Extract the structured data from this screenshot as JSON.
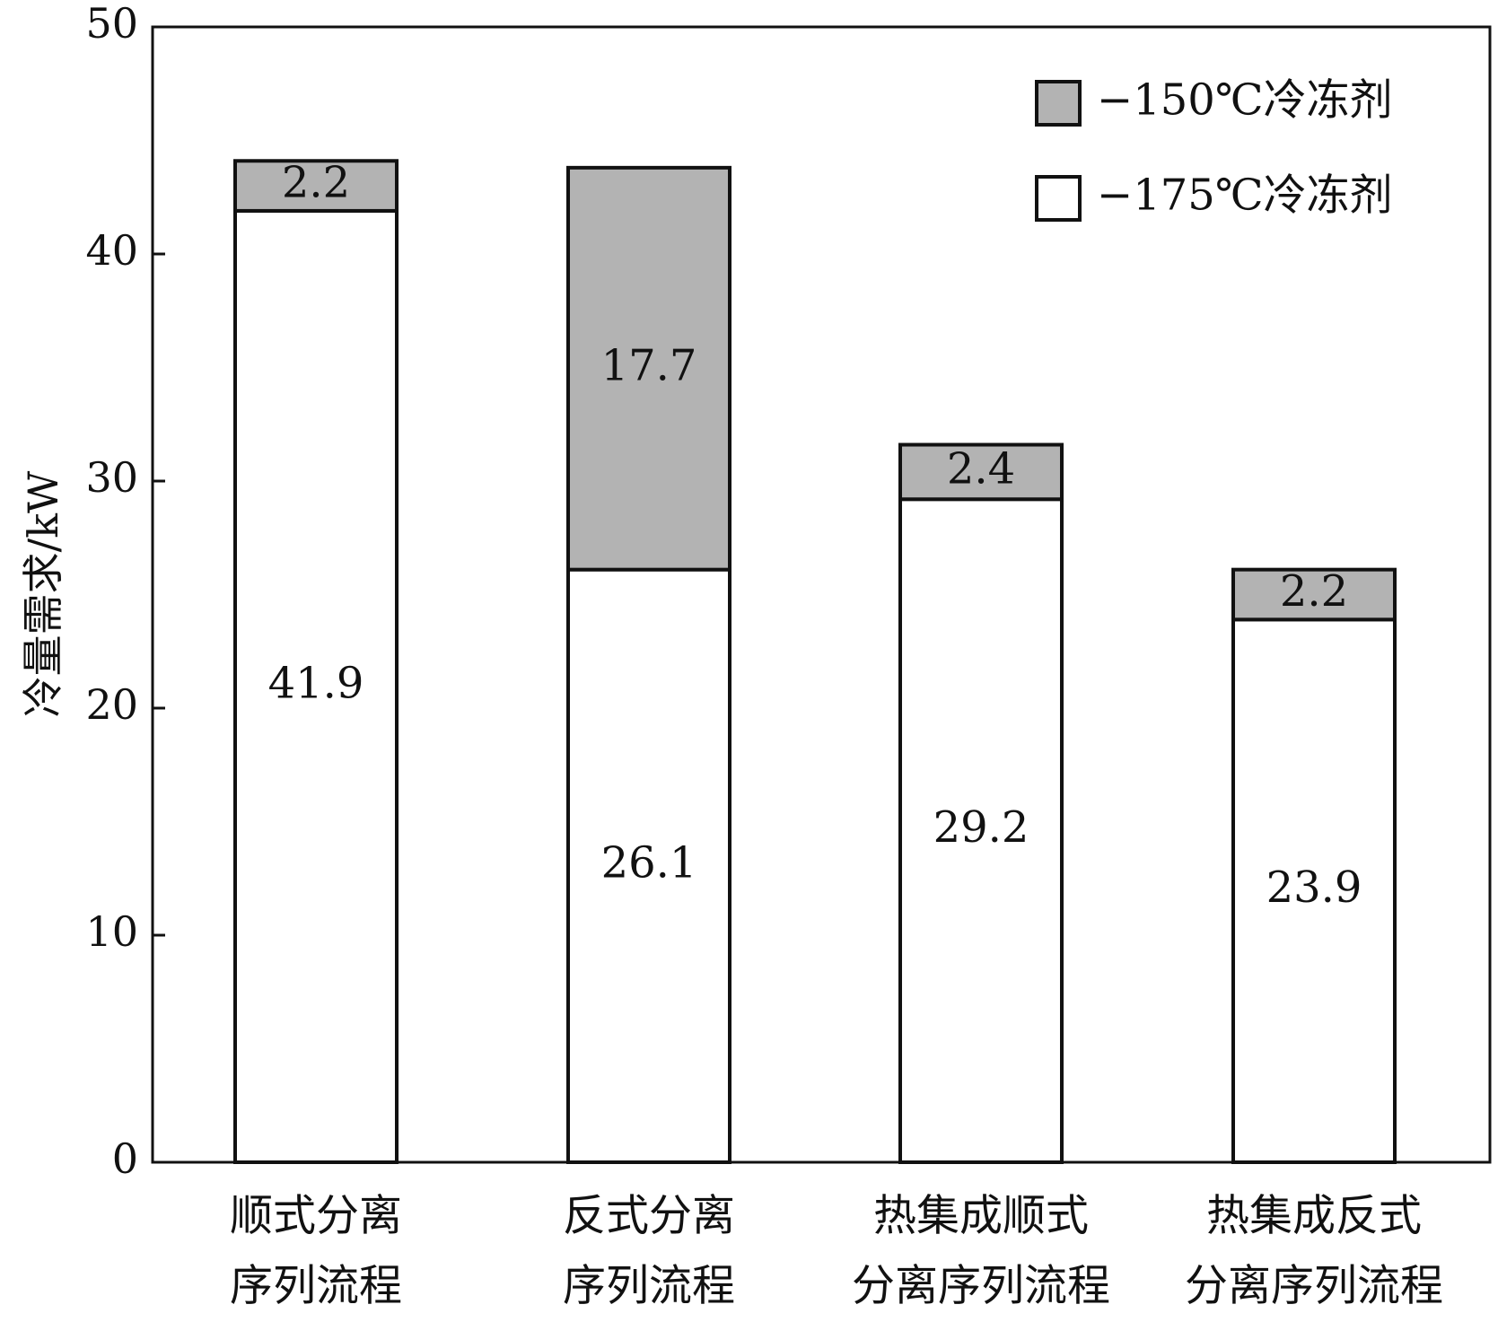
{
  "chart_data": {
    "type": "bar",
    "stacked": true,
    "categories": [
      [
        "顺式分离",
        "序列流程"
      ],
      [
        "反式分离",
        "序列流程"
      ],
      [
        "热集成顺式",
        "分离序列流程"
      ],
      [
        "热集成反式",
        "分离序列流程"
      ]
    ],
    "series": [
      {
        "name": "−175℃冷冻剂",
        "values": [
          41.9,
          26.1,
          29.2,
          23.9
        ],
        "color": "#ffffff"
      },
      {
        "name": "−150℃冷冻剂",
        "values": [
          2.2,
          17.7,
          2.4,
          2.2
        ],
        "color": "#b3b3b3"
      }
    ],
    "data_labels": [
      [
        "41.9",
        "26.1",
        "29.2",
        "23.9"
      ],
      [
        "2.2",
        "17.7",
        "2.4",
        "2.2"
      ]
    ],
    "ylabel": "冷量需求/kW",
    "xlabel": "",
    "ylim": [
      0,
      50
    ],
    "yticks": [
      0,
      10,
      20,
      30,
      40,
      50
    ],
    "grid": false,
    "legend_position": "top-right",
    "legend_order": [
      1,
      0
    ]
  }
}
